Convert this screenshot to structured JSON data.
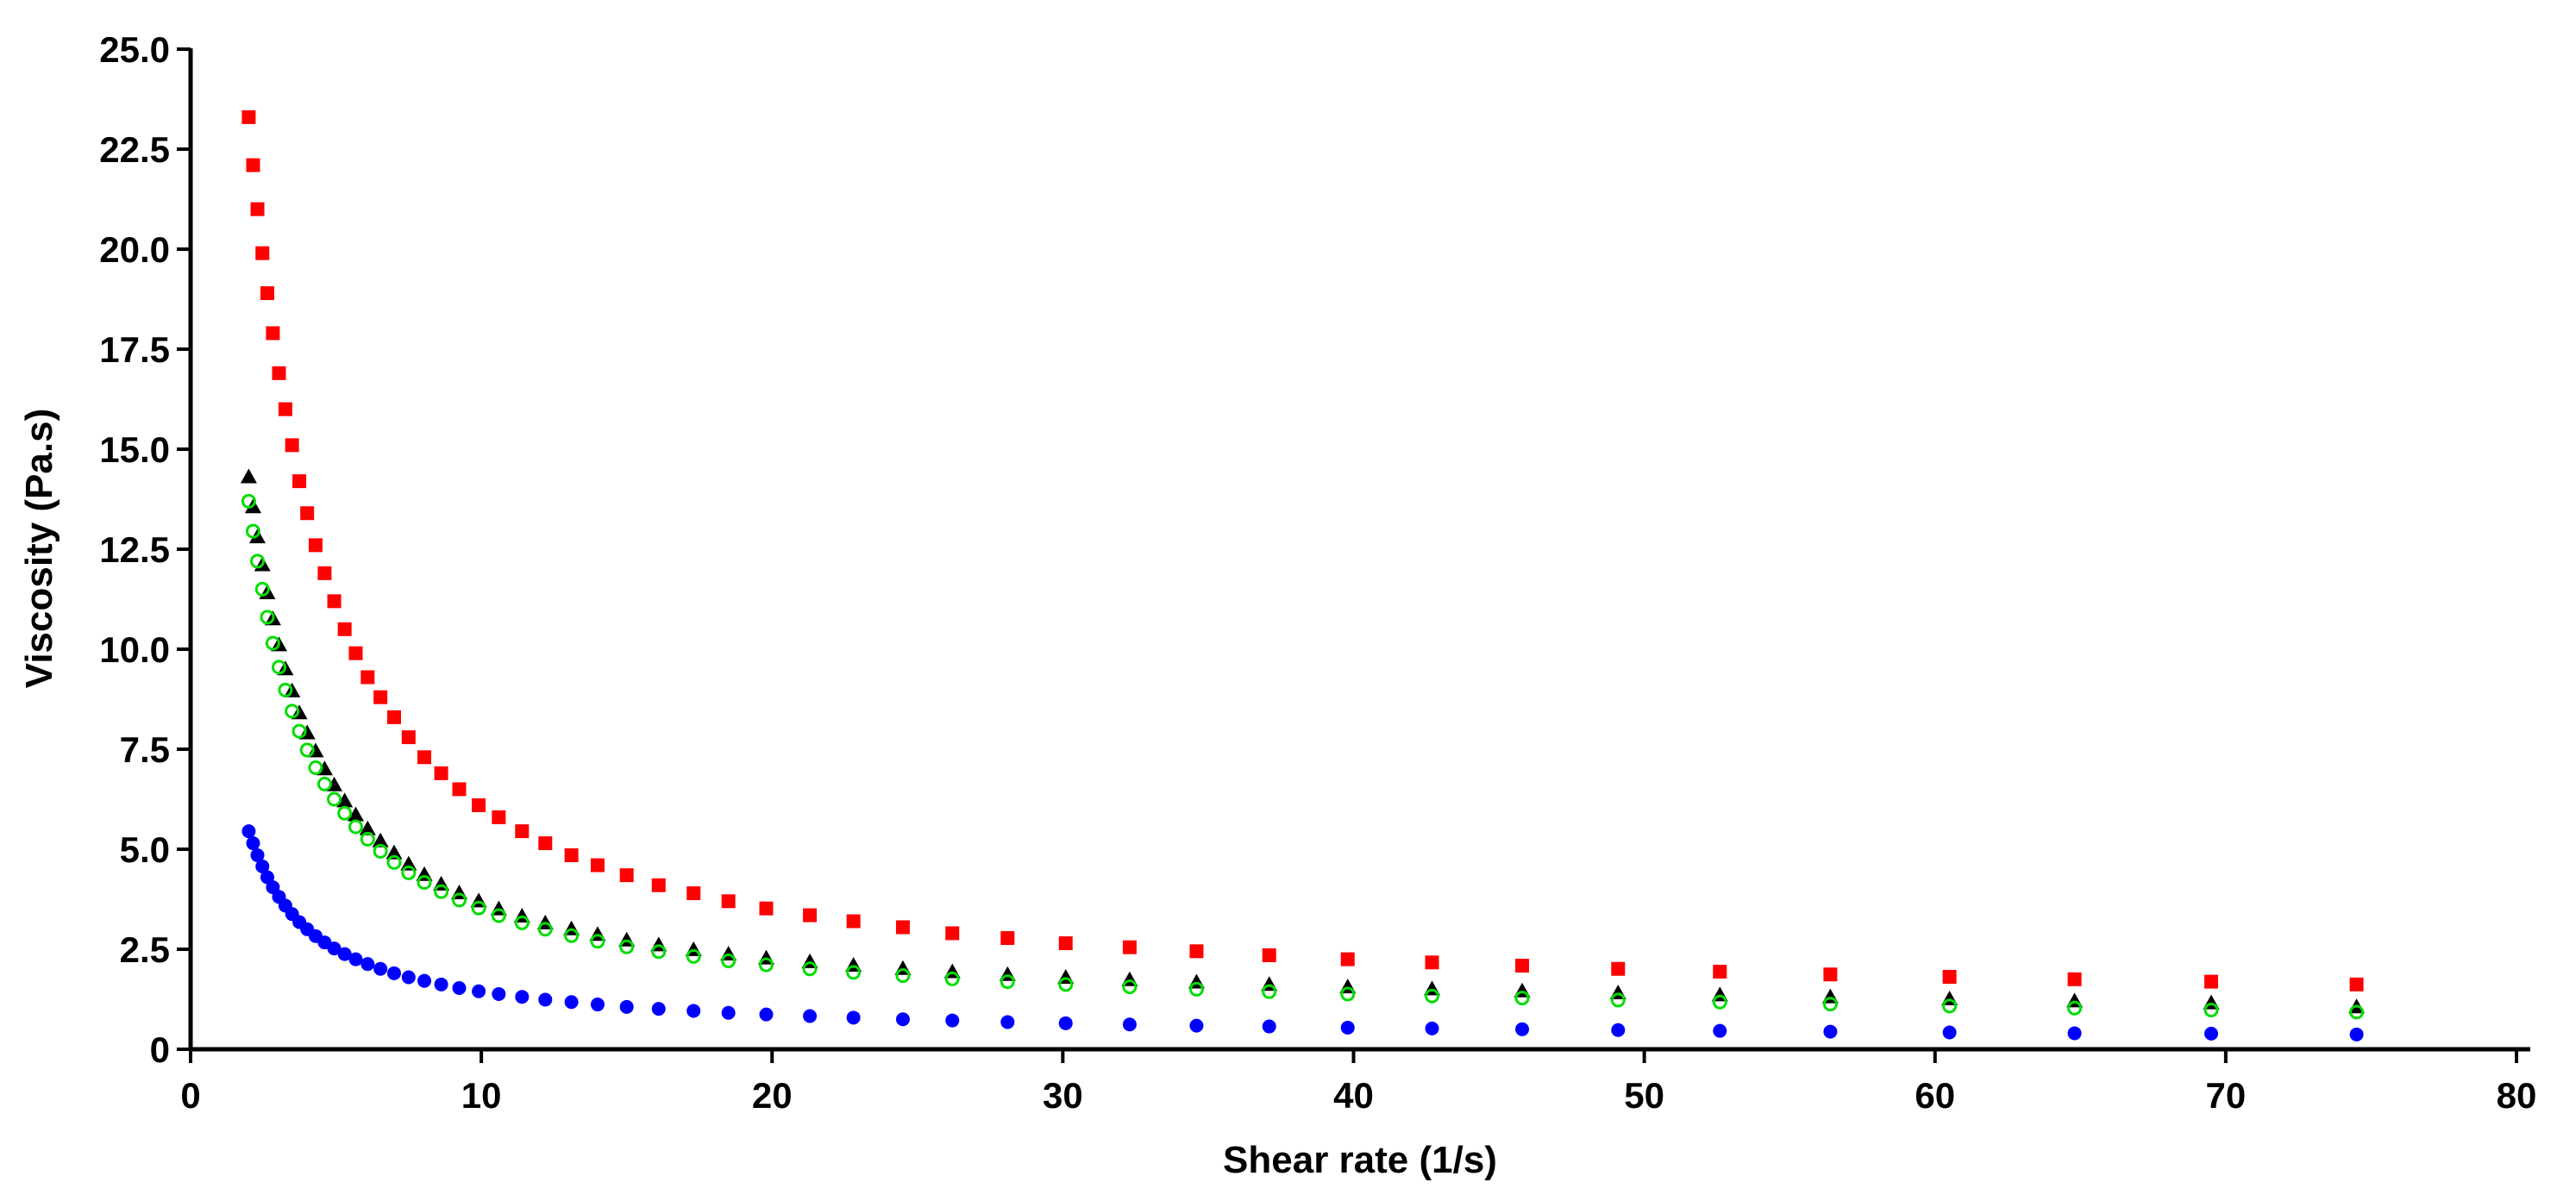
{
  "chart_data": {
    "type": "scatter",
    "title": "",
    "xlabel": "Shear rate (1/s)",
    "ylabel": "Viscosity (Pa.s)",
    "xlim": [
      0,
      80
    ],
    "ylim": [
      0,
      25
    ],
    "x_ticks": [
      "0",
      "10",
      "20",
      "30",
      "40",
      "50",
      "60",
      "70",
      "80"
    ],
    "y_ticks": [
      "0",
      "2.5",
      "5.0",
      "7.5",
      "10.0",
      "12.5",
      "15.0",
      "17.5",
      "20.0",
      "22.5",
      "25.0"
    ],
    "grid": false,
    "legend": "none",
    "x": [
      2.0,
      2.15,
      2.3,
      2.47,
      2.64,
      2.83,
      3.04,
      3.26,
      3.49,
      3.74,
      4.01,
      4.3,
      4.61,
      4.94,
      5.3,
      5.68,
      6.09,
      6.53,
      7.0,
      7.5,
      8.04,
      8.62,
      9.24,
      9.91,
      10.6,
      11.4,
      12.2,
      13.1,
      14.0,
      15.0,
      16.1,
      17.3,
      18.5,
      19.8,
      21.3,
      22.8,
      24.5,
      26.2,
      28.1,
      30.1,
      32.3,
      34.6,
      37.1,
      39.8,
      42.7,
      45.8,
      49.1,
      52.6,
      56.4,
      60.5,
      64.8,
      69.5,
      74.5
    ],
    "series": [
      {
        "marker": "square",
        "color": "#ff0000",
        "values": [
          23.3,
          22.1,
          21.0,
          19.9,
          18.9,
          17.9,
          16.9,
          16.0,
          15.1,
          14.2,
          13.4,
          12.6,
          11.9,
          11.2,
          10.5,
          9.9,
          9.3,
          8.8,
          8.3,
          7.8,
          7.3,
          6.9,
          6.5,
          6.1,
          5.8,
          5.45,
          5.15,
          4.85,
          4.6,
          4.35,
          4.1,
          3.9,
          3.7,
          3.52,
          3.35,
          3.2,
          3.05,
          2.9,
          2.78,
          2.65,
          2.55,
          2.45,
          2.35,
          2.25,
          2.17,
          2.09,
          2.01,
          1.94,
          1.87,
          1.81,
          1.75,
          1.69,
          1.62
        ]
      },
      {
        "marker": "triangle",
        "color": "#000000",
        "values": [
          14.3,
          13.55,
          12.8,
          12.1,
          11.4,
          10.75,
          10.1,
          9.5,
          8.95,
          8.4,
          7.9,
          7.45,
          7.0,
          6.6,
          6.2,
          5.85,
          5.5,
          5.2,
          4.9,
          4.62,
          4.36,
          4.12,
          3.9,
          3.7,
          3.5,
          3.32,
          3.15,
          3.0,
          2.86,
          2.72,
          2.6,
          2.48,
          2.37,
          2.27,
          2.18,
          2.09,
          2.01,
          1.93,
          1.86,
          1.79,
          1.73,
          1.67,
          1.61,
          1.55,
          1.5,
          1.45,
          1.4,
          1.35,
          1.3,
          1.25,
          1.2,
          1.15,
          1.05
        ]
      },
      {
        "marker": "circle-open",
        "color": "#00dd00",
        "values": [
          13.7,
          12.95,
          12.2,
          11.5,
          10.8,
          10.15,
          9.55,
          8.98,
          8.45,
          7.95,
          7.48,
          7.04,
          6.63,
          6.25,
          5.9,
          5.56,
          5.25,
          4.95,
          4.67,
          4.41,
          4.17,
          3.94,
          3.73,
          3.53,
          3.34,
          3.16,
          3.0,
          2.84,
          2.7,
          2.56,
          2.44,
          2.32,
          2.21,
          2.11,
          2.01,
          1.92,
          1.84,
          1.76,
          1.69,
          1.62,
          1.56,
          1.5,
          1.44,
          1.38,
          1.33,
          1.28,
          1.23,
          1.18,
          1.13,
          1.08,
          1.03,
          0.98,
          0.93
        ]
      },
      {
        "marker": "circle",
        "color": "#0000ff",
        "values": [
          5.45,
          5.15,
          4.85,
          4.57,
          4.3,
          4.05,
          3.81,
          3.59,
          3.38,
          3.18,
          3.0,
          2.83,
          2.67,
          2.52,
          2.38,
          2.25,
          2.13,
          2.01,
          1.9,
          1.8,
          1.71,
          1.62,
          1.53,
          1.45,
          1.38,
          1.31,
          1.24,
          1.18,
          1.12,
          1.06,
          1.01,
          0.96,
          0.91,
          0.87,
          0.83,
          0.79,
          0.75,
          0.72,
          0.68,
          0.65,
          0.62,
          0.59,
          0.57,
          0.54,
          0.52,
          0.5,
          0.48,
          0.46,
          0.44,
          0.42,
          0.4,
          0.39,
          0.37
        ]
      }
    ]
  }
}
